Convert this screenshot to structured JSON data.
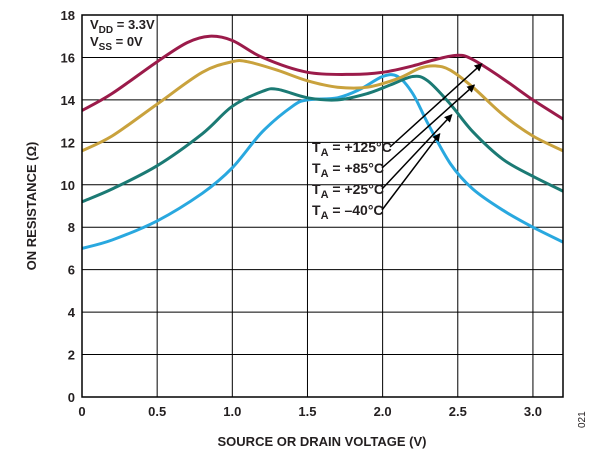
{
  "chart_data": {
    "type": "line",
    "xlabel": "SOURCE OR DRAIN VOLTAGE (V)",
    "ylabel": "ON RESISTANCE (Ω)",
    "xlim": [
      0,
      3.2
    ],
    "ylim": [
      0,
      18
    ],
    "xticks": [
      0,
      0.5,
      1.0,
      1.5,
      2.0,
      2.5,
      3.0
    ],
    "xtick_labels": [
      "0",
      "0.5",
      "1.0",
      "1.5",
      "2.0",
      "2.5",
      "3.0"
    ],
    "yticks": [
      0,
      2,
      4,
      6,
      8,
      10,
      12,
      14,
      16,
      18
    ],
    "grid": true,
    "conditions": {
      "vdd": {
        "main": "V",
        "sub": "DD",
        "rest": " = 3.3V"
      },
      "vss": {
        "main": "V",
        "sub": "SS",
        "rest": " = 0V"
      }
    },
    "series": [
      {
        "name": "TA = +125°C",
        "label_main": "T",
        "label_sub": "A",
        "label_rest": " = +125°C",
        "color": "#9b1b4a",
        "x": [
          0,
          0.2,
          0.5,
          0.7,
          0.85,
          1.0,
          1.2,
          1.5,
          1.8,
          2.0,
          2.2,
          2.35,
          2.5,
          2.6,
          2.8,
          3.0,
          3.2
        ],
        "y": [
          13.5,
          14.3,
          15.8,
          16.7,
          17.0,
          16.8,
          16.0,
          15.3,
          15.2,
          15.3,
          15.6,
          15.9,
          16.1,
          15.9,
          15.0,
          14.0,
          13.1
        ]
      },
      {
        "name": "TA = +85°C",
        "label_main": "T",
        "label_sub": "A",
        "label_rest": " = +85°C",
        "color": "#c9a23d",
        "x": [
          0,
          0.2,
          0.5,
          0.8,
          1.0,
          1.1,
          1.3,
          1.5,
          1.7,
          1.9,
          2.1,
          2.25,
          2.35,
          2.45,
          2.6,
          2.8,
          3.0,
          3.2
        ],
        "y": [
          11.6,
          12.3,
          13.8,
          15.3,
          15.8,
          15.8,
          15.4,
          14.9,
          14.6,
          14.6,
          15.0,
          15.5,
          15.6,
          15.4,
          14.6,
          13.3,
          12.3,
          11.6
        ]
      },
      {
        "name": "TA = +25°C",
        "label_main": "T",
        "label_sub": "A",
        "label_rest": " = +25°C",
        "color": "#1b7a74",
        "x": [
          0,
          0.2,
          0.5,
          0.8,
          1.0,
          1.2,
          1.3,
          1.5,
          1.7,
          1.9,
          2.05,
          2.2,
          2.3,
          2.45,
          2.6,
          2.8,
          3.0,
          3.2
        ],
        "y": [
          9.2,
          9.8,
          10.9,
          12.4,
          13.7,
          14.4,
          14.5,
          14.1,
          14.0,
          14.3,
          14.7,
          15.1,
          14.9,
          13.8,
          12.5,
          11.2,
          10.4,
          9.7
        ]
      },
      {
        "name": "TA = –40°C",
        "label_main": "T",
        "label_sub": "A",
        "label_rest": " = –40°C",
        "color": "#29a8df",
        "x": [
          0,
          0.2,
          0.5,
          0.8,
          1.0,
          1.2,
          1.4,
          1.5,
          1.7,
          1.85,
          2.0,
          2.1,
          2.2,
          2.3,
          2.45,
          2.6,
          2.8,
          3.0,
          3.2
        ],
        "y": [
          7.0,
          7.4,
          8.3,
          9.6,
          10.8,
          12.5,
          13.7,
          14.0,
          14.1,
          14.5,
          15.1,
          15.1,
          14.3,
          12.9,
          11.0,
          9.8,
          8.8,
          8.0,
          7.3
        ]
      }
    ]
  },
  "figure_id": "021"
}
